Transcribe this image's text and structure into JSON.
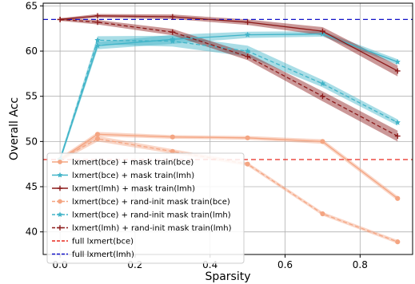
{
  "chart_data": {
    "type": "line",
    "title": "",
    "xlabel": "Sparsity",
    "ylabel": "Overall Acc",
    "xlim": [
      -0.045,
      0.94
    ],
    "ylim": [
      37.5,
      65.3
    ],
    "xticks": [
      0.0,
      0.2,
      0.4,
      0.6,
      0.8
    ],
    "xtick_labels": [
      "0.0",
      "0.2",
      "0.4",
      "0.6",
      "0.8"
    ],
    "yticks": [
      40,
      45,
      50,
      55,
      60,
      65
    ],
    "ytick_labels": [
      "40",
      "45",
      "50",
      "55",
      "60",
      "65"
    ],
    "grid": true,
    "legend_position": "lower-left",
    "x": [
      0.0,
      0.1,
      0.3,
      0.5,
      0.7,
      0.9
    ],
    "series": [
      {
        "name": "lxmert(bce) + mask train(bce)",
        "color": "#f4a582",
        "linestyle": "solid",
        "marker": "circle",
        "values": [
          48.0,
          50.8,
          50.5,
          50.4,
          50.0,
          43.7
        ],
        "band": [
          0.25,
          0.25,
          0.2,
          0.2,
          0.25,
          0.25
        ]
      },
      {
        "name": "lxmert(bce) + mask train(lmh)",
        "color": "#40b4c8",
        "linestyle": "solid",
        "marker": "star",
        "values": [
          48.0,
          60.6,
          61.3,
          61.8,
          61.9,
          58.8
        ],
        "band": [
          0.3,
          0.4,
          0.5,
          0.35,
          0.3,
          0.3
        ]
      },
      {
        "name": "lxmert(lmh) + mask train(lmh)",
        "color": "#8b1a1a",
        "linestyle": "solid",
        "marker": "plus",
        "values": [
          63.5,
          63.9,
          63.8,
          63.2,
          62.2,
          57.8
        ],
        "band": [
          0.15,
          0.2,
          0.25,
          0.3,
          0.45,
          0.6
        ]
      },
      {
        "name": "lxmert(bce) + rand-init mask train(bce)",
        "color": "#f4a582",
        "linestyle": "dashed",
        "marker": "circle",
        "values": [
          48.0,
          50.3,
          48.9,
          47.5,
          42.0,
          38.9
        ],
        "band": [
          0.25,
          0.3,
          0.25,
          0.2,
          0.2,
          0.2
        ]
      },
      {
        "name": "lxmert(bce) + rand-init mask train(lmh)",
        "color": "#40b4c8",
        "linestyle": "dashed",
        "marker": "star",
        "values": [
          48.0,
          61.2,
          61.1,
          60.0,
          56.4,
          52.1
        ],
        "band": [
          0.3,
          0.45,
          0.6,
          0.6,
          0.4,
          0.35
        ]
      },
      {
        "name": "lxmert(lmh) + rand-init mask train(lmh)",
        "color": "#8b1a1a",
        "linestyle": "dashed",
        "marker": "plus",
        "values": [
          63.5,
          63.2,
          62.1,
          59.4,
          55.0,
          50.6
        ],
        "band": [
          0.15,
          0.25,
          0.35,
          0.4,
          0.55,
          0.6
        ]
      }
    ],
    "reference_lines": [
      {
        "name": "full lxmert(bce)",
        "y": 48.0,
        "color": "#e8281f",
        "linestyle": "dashed"
      },
      {
        "name": "full lxmert(lmh)",
        "y": 63.5,
        "color": "#1010c8",
        "linestyle": "dashed"
      }
    ]
  }
}
